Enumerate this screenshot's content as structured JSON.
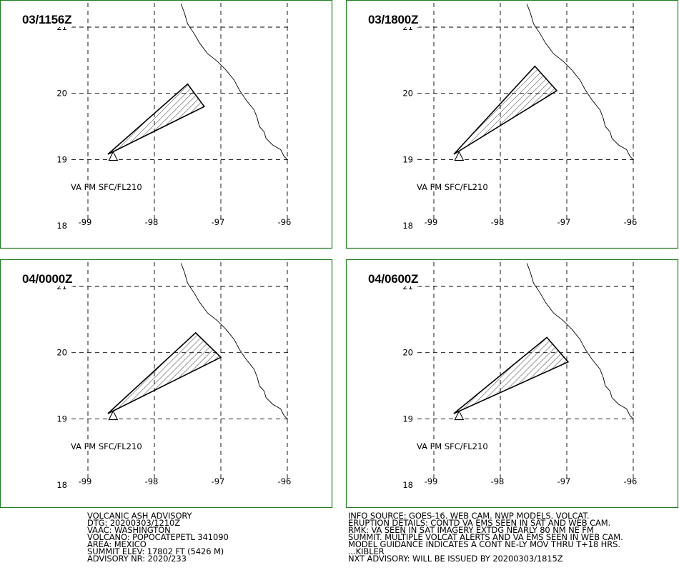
{
  "panels": [
    {
      "time": "03/1156Z",
      "va_label": "VA FM SFC/FL210",
      "ash_polygon": [
        [
          -98.7,
          19.08
        ],
        [
          -97.5,
          20.14
        ],
        [
          -97.25,
          19.8
        ]
      ]
    },
    {
      "time": "03/1800Z",
      "va_label": "VA FM SFC/FL210",
      "ash_polygon": [
        [
          -98.7,
          19.08
        ],
        [
          -97.48,
          20.41
        ],
        [
          -97.15,
          20.04
        ]
      ]
    },
    {
      "time": "04/0000Z",
      "va_label": "VA FM SFC/FL210",
      "ash_polygon": [
        [
          -98.7,
          19.08
        ],
        [
          -97.38,
          20.3
        ],
        [
          -97.0,
          19.93
        ]
      ]
    },
    {
      "time": "04/0600Z",
      "va_label": "VA FM SFC/FL210",
      "ash_polygon": [
        [
          -98.7,
          19.08
        ],
        [
          -97.3,
          20.23
        ],
        [
          -96.98,
          19.86
        ]
      ]
    }
  ],
  "map": {
    "lat_ticks": [
      "21",
      "20",
      "19",
      "18"
    ],
    "lon_ticks": [
      "-99",
      "-98",
      "-97",
      "-96"
    ],
    "lat_values": [
      21,
      20,
      19,
      18
    ],
    "lon_values": [
      -99,
      -98,
      -97,
      -96
    ],
    "volcano_lonlat": [
      -98.62,
      19.02
    ],
    "coastline": [
      [
        -97.6,
        21.35
      ],
      [
        -97.55,
        21.22
      ],
      [
        -97.5,
        21.05
      ],
      [
        -97.4,
        20.9
      ],
      [
        -97.32,
        20.76
      ],
      [
        -97.2,
        20.6
      ],
      [
        -97.05,
        20.48
      ],
      [
        -96.92,
        20.35
      ],
      [
        -96.8,
        20.2
      ],
      [
        -96.72,
        20.05
      ],
      [
        -96.62,
        19.9
      ],
      [
        -96.5,
        19.75
      ],
      [
        -96.45,
        19.62
      ],
      [
        -96.42,
        19.5
      ],
      [
        -96.35,
        19.42
      ],
      [
        -96.32,
        19.32
      ],
      [
        -96.22,
        19.22
      ],
      [
        -96.1,
        19.15
      ],
      [
        -96.05,
        19.05
      ],
      [
        -96.0,
        19.0
      ]
    ]
  },
  "advisory_left": [
    "VOLCANIC ASH ADVISORY",
    "DTG: 20200303/1210Z",
    "VAAC: WASHINGTON",
    "VOLCANO: POPOCATEPETL 341090",
    "AREA: MEXICO",
    "SUMMIT ELEV: 17802 FT (5426 M)",
    "ADVISORY NR: 2020/233"
  ],
  "advisory_right": [
    "INFO SOURCE: GOES-16. WEB CAM. NWP MODELS. VOLCAT.",
    "ERUPTION DETAILS: CONTD VA EMS SEEN IN SAT AND WEB CAM.",
    "RMK: VA SEEN IN SAT IMAGERY EXTDG NEARLY 80 NM NE FM",
    "SUMMIT. MULTIPLE VOLCAT ALERTS AND VA EMS SEEN IN WEB CAM.",
    "MODEL GUIDANCE INDICATES A CONT NE-LY MOV THRU T+18 HRS.",
    "...KIBLER",
    "NXT ADVISORY: WILL BE ISSUED BY 20200303/1815Z"
  ]
}
